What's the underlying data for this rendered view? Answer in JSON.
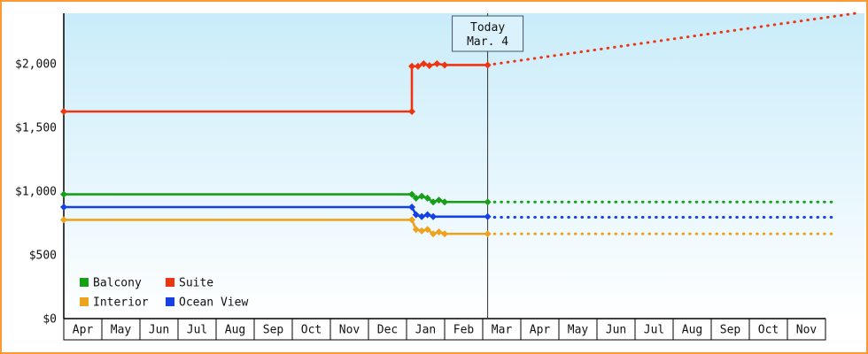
{
  "colors": {
    "frame_border": "#ff9933",
    "plot_gradient_top": "#c9ecfa",
    "plot_gradient_bottom": "#ffffff",
    "axis": "#000000",
    "month_box_fill": "#ffffff",
    "today_line": "#333333",
    "today_box_fill": "#dbf1fb",
    "today_box_border": "#445566",
    "text": "#111111"
  },
  "chart_data": {
    "type": "line",
    "title": "",
    "x_axis": {
      "tick_labels": [
        "Apr",
        "May",
        "Jun",
        "Jul",
        "Aug",
        "Sep",
        "Oct",
        "Nov",
        "Dec",
        "Jan",
        "Feb",
        "Mar",
        "Apr",
        "May",
        "Jun",
        "Jul",
        "Aug",
        "Sep",
        "Oct",
        "Nov"
      ]
    },
    "y_axis": {
      "tick_labels": [
        "$0",
        "$500",
        "$1,000",
        "$1,500",
        "$2,000"
      ],
      "tick_values": [
        0,
        500,
        1000,
        1500,
        2000
      ],
      "range": [
        0,
        2400
      ]
    },
    "today": {
      "label": [
        "Today",
        "Mar. 4"
      ],
      "month_position": 11.13
    },
    "series": [
      {
        "name": "Balcony",
        "color": "#17a017",
        "history": [
          [
            0,
            975
          ],
          [
            9.14,
            975
          ],
          [
            9.25,
            945
          ],
          [
            9.4,
            960
          ],
          [
            9.55,
            945
          ],
          [
            9.7,
            915
          ],
          [
            9.85,
            930
          ],
          [
            10,
            915
          ],
          [
            11.13,
            915
          ]
        ],
        "forecast": [
          [
            11.13,
            915
          ],
          [
            20.2,
            915
          ]
        ]
      },
      {
        "name": "Suite",
        "color": "#ee3512",
        "history": [
          [
            0,
            1625
          ],
          [
            9.14,
            1625
          ],
          [
            9.14,
            1980
          ],
          [
            9.3,
            1980
          ],
          [
            9.45,
            2000
          ],
          [
            9.6,
            1985
          ],
          [
            9.8,
            2000
          ],
          [
            10,
            1990
          ],
          [
            11.13,
            1990
          ]
        ],
        "forecast": [
          [
            11.13,
            1990
          ],
          [
            20.9,
            2400
          ]
        ]
      },
      {
        "name": "Interior",
        "color": "#efa21e",
        "history": [
          [
            0,
            775
          ],
          [
            9.14,
            775
          ],
          [
            9.25,
            700
          ],
          [
            9.4,
            688
          ],
          [
            9.55,
            700
          ],
          [
            9.7,
            665
          ],
          [
            9.85,
            680
          ],
          [
            10,
            665
          ],
          [
            11.13,
            665
          ]
        ],
        "forecast": [
          [
            11.13,
            665
          ],
          [
            20.2,
            665
          ]
        ]
      },
      {
        "name": "Ocean View",
        "color": "#1440e6",
        "history": [
          [
            0,
            875
          ],
          [
            9.14,
            875
          ],
          [
            9.25,
            815
          ],
          [
            9.4,
            800
          ],
          [
            9.55,
            815
          ],
          [
            9.7,
            800
          ],
          [
            11.13,
            800
          ]
        ],
        "forecast": [
          [
            11.13,
            795
          ],
          [
            20.2,
            795
          ]
        ]
      }
    ],
    "legend": {
      "position": "bottom-left",
      "columns": 2
    }
  }
}
